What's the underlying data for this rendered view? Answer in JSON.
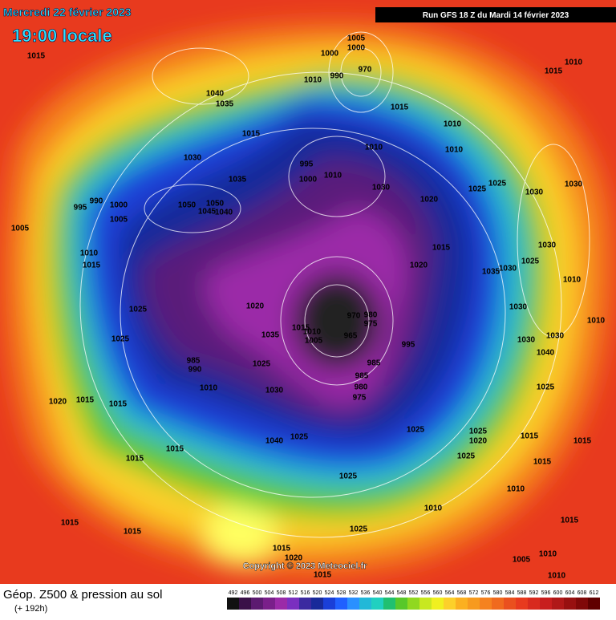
{
  "header": {
    "date": "Mercredi 22 février 2023",
    "time": "19:00 locale",
    "run": "Run GFS 18 Z du Mardi 14 février 2023"
  },
  "footer": {
    "title": "Géop. Z500 & pression au sol",
    "subtitle": "(+ 192h)",
    "copyright": "Copyright © 2023 Meteociel.fr"
  },
  "legend": {
    "values": [
      492,
      496,
      500,
      504,
      508,
      512,
      516,
      520,
      524,
      528,
      532,
      536,
      540,
      544,
      548,
      552,
      556,
      560,
      564,
      568,
      572,
      576,
      580,
      584,
      588,
      592,
      596,
      600,
      604,
      608,
      612
    ]
  },
  "isobar_labels": [
    1015,
    1040,
    1035,
    1005,
    1000,
    1000,
    970,
    990,
    1010,
    1015,
    1015,
    1010,
    1010,
    1010,
    1010,
    1015,
    995,
    1000,
    1010,
    1030,
    1020,
    1025,
    1025,
    1030,
    1030,
    1030,
    1035,
    995,
    990,
    1000,
    1005,
    1050,
    1050,
    1045,
    1040,
    1005,
    1010,
    1015,
    1015,
    1020,
    1035,
    1030,
    1025,
    1030,
    1010,
    1025,
    1025,
    1020,
    1035,
    970,
    980,
    975,
    965,
    1015,
    1010,
    1005,
    995,
    985,
    985,
    980,
    975,
    1030,
    1010,
    1030,
    1030,
    1040,
    1025,
    985,
    990,
    1025,
    1030,
    1010,
    1020,
    1015,
    1015,
    1025,
    1025,
    1020,
    1025,
    1015,
    1015,
    1015,
    1025,
    1010,
    1010,
    1015,
    1015,
    1015,
    1015,
    1025,
    1015,
    1020,
    1015,
    1005,
    1010,
    1015,
    1010,
    1040,
    1025
  ]
}
